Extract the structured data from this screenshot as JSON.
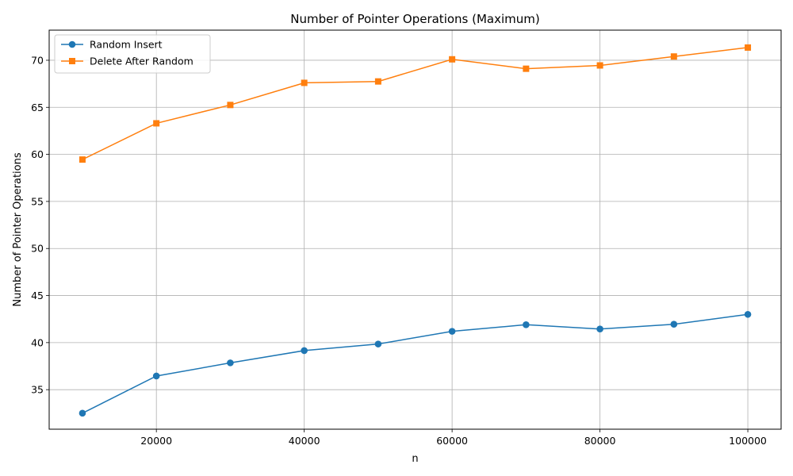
{
  "chart_data": {
    "type": "line",
    "title": "Number of Pointer Operations (Maximum)",
    "xlabel": "n",
    "ylabel": "Number of Pointer Operations",
    "x": [
      10000,
      20000,
      30000,
      40000,
      50000,
      60000,
      70000,
      80000,
      90000,
      100000
    ],
    "xlim": [
      5500,
      104500
    ],
    "ylim": [
      30.8,
      73.2
    ],
    "xticks": [
      20000,
      40000,
      60000,
      80000,
      100000
    ],
    "yticks": [
      35,
      40,
      45,
      50,
      55,
      60,
      65,
      70
    ],
    "grid": true,
    "legend_position": "top-left",
    "series": [
      {
        "name": "Random Insert",
        "color": "#1f77b4",
        "marker": "circle",
        "values": [
          32.5,
          36.45,
          37.85,
          39.15,
          39.85,
          41.2,
          41.9,
          41.45,
          41.95,
          43.0
        ]
      },
      {
        "name": "Delete After Random",
        "color": "#ff7f0e",
        "marker": "square",
        "values": [
          59.45,
          63.3,
          65.25,
          67.6,
          67.75,
          70.1,
          69.1,
          69.45,
          70.4,
          71.35
        ]
      }
    ]
  }
}
